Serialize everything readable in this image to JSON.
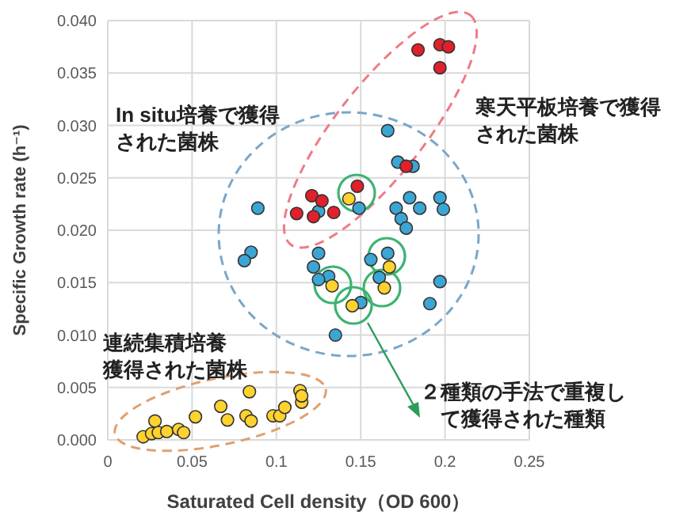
{
  "chart_data": {
    "type": "scatter",
    "xlabel": "Saturated Cell density（OD 600）",
    "ylabel": "Specific Growth rate (h⁻¹)",
    "xlim": [
      0,
      0.25
    ],
    "ylim": [
      0,
      0.04
    ],
    "xticks": [
      0,
      0.05,
      0.1,
      0.15,
      0.2,
      0.25
    ],
    "yticks": [
      {
        "value": 0,
        "label": "0.000"
      },
      {
        "value": 0.005,
        "label": "0.005"
      },
      {
        "value": 0.01,
        "label": "0.010"
      },
      {
        "value": 0.015,
        "label": "0.015"
      },
      {
        "value": 0.02,
        "label": "0.020"
      },
      {
        "value": 0.025,
        "label": "0.025"
      },
      {
        "value": 0.03,
        "label": "0.030"
      },
      {
        "value": 0.035,
        "label": "0.035"
      },
      {
        "value": 0.04,
        "label": "0.040"
      }
    ],
    "grid": true,
    "marker": "circle",
    "series": [
      {
        "color": "#3ba6d4",
        "x": [
          0.172,
          0.181,
          0.179,
          0.171,
          0.185,
          0.174,
          0.177,
          0.197,
          0.199,
          0.089,
          0.125,
          0.149,
          0.085,
          0.081,
          0.125,
          0.122,
          0.131,
          0.125,
          0.156,
          0.166,
          0.161,
          0.15,
          0.191,
          0.135,
          0.197,
          0.166
        ],
        "values": [
          0.0265,
          0.0261,
          0.0231,
          0.0221,
          0.0221,
          0.0211,
          0.0202,
          0.0231,
          0.022,
          0.0221,
          0.0218,
          0.0221,
          0.0179,
          0.0171,
          0.0178,
          0.0165,
          0.0156,
          0.0153,
          0.0172,
          0.0178,
          0.0155,
          0.0131,
          0.013,
          0.01,
          0.0151,
          0.0295
        ]
      },
      {
        "color": "#e0202a",
        "x": [
          0.184,
          0.197,
          0.202,
          0.197,
          0.177,
          0.121,
          0.127,
          0.148,
          0.112,
          0.122,
          0.134
        ],
        "values": [
          0.0372,
          0.0377,
          0.0375,
          0.0355,
          0.0261,
          0.0233,
          0.0228,
          0.0242,
          0.0216,
          0.0213,
          0.0217
        ]
      },
      {
        "color": "#ffd22e",
        "x": [
          0.143,
          0.167,
          0.133,
          0.164,
          0.145,
          0.021,
          0.028,
          0.026,
          0.03,
          0.035,
          0.042,
          0.045,
          0.052,
          0.067,
          0.071,
          0.084,
          0.082,
          0.085,
          0.098,
          0.102,
          0.105,
          0.114,
          0.115,
          0.115
        ],
        "values": [
          0.023,
          0.0165,
          0.0147,
          0.0145,
          0.0128,
          0.0003,
          0.0018,
          0.0006,
          0.0007,
          0.0008,
          0.001,
          0.0007,
          0.0022,
          0.0032,
          0.0019,
          0.0046,
          0.0023,
          0.0018,
          0.0023,
          0.0023,
          0.0031,
          0.0047,
          0.0036,
          0.0042
        ]
      }
    ],
    "annotations": [
      "In situ培養で獲得された菌株",
      "寒天平板培養で獲得された菌株",
      "連続集積培養獲得された菌株",
      "２種類の手法で重複して獲得された種類"
    ]
  }
}
